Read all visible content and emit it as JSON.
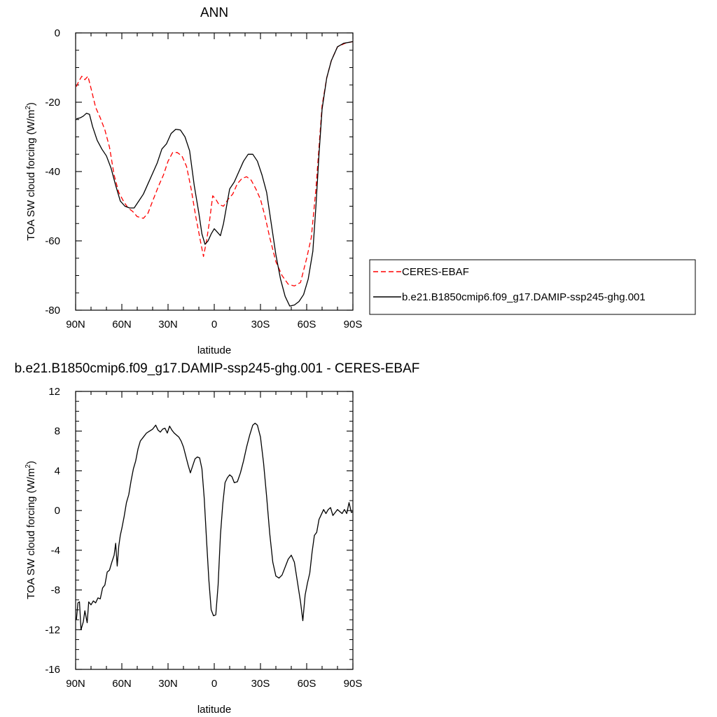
{
  "chart_data": [
    {
      "type": "line",
      "title": "ANN",
      "xlabel": "latitude",
      "ylabel": "TOA SW cloud forcing (W/m",
      "ylabel_sup": "2",
      "ylabel_close": ")",
      "xlim": [
        90,
        -90
      ],
      "ylim": [
        -80,
        0
      ],
      "x_ticks": [
        90,
        60,
        30,
        0,
        -30,
        -60,
        -90
      ],
      "x_tick_labels": [
        "90N",
        "60N",
        "30N",
        "0",
        "30S",
        "60S",
        "90S"
      ],
      "y_ticks": [
        0,
        -20,
        -40,
        -60,
        -80
      ],
      "y_tick_labels": [
        "0",
        "-20",
        "-40",
        "-60",
        "-80"
      ],
      "legend_position": "right",
      "series": [
        {
          "name": "CERES-EBAF",
          "color": "#ff0000",
          "dash": "dashed",
          "points": [
            [
              89.5,
              -15.5
            ],
            [
              88,
              -14
            ],
            [
              86,
              -12.5
            ],
            [
              84,
              -13.5
            ],
            [
              82,
              -12.5
            ],
            [
              80,
              -16
            ],
            [
              77,
              -21.5
            ],
            [
              74,
              -24.5
            ],
            [
              71,
              -28
            ],
            [
              68,
              -33
            ],
            [
              65,
              -41
            ],
            [
              62,
              -46
            ],
            [
              59,
              -48.5
            ],
            [
              56,
              -50.5
            ],
            [
              53,
              -51.5
            ],
            [
              50,
              -53
            ],
            [
              46,
              -53.5
            ],
            [
              43,
              -52
            ],
            [
              40,
              -48.5
            ],
            [
              36,
              -44
            ],
            [
              33,
              -41
            ],
            [
              30,
              -37
            ],
            [
              27,
              -34.5
            ],
            [
              24,
              -34.5
            ],
            [
              21,
              -35.5
            ],
            [
              18,
              -38.5
            ],
            [
              15,
              -45
            ],
            [
              12,
              -53
            ],
            [
              9,
              -60
            ],
            [
              7,
              -64.5
            ],
            [
              5,
              -60
            ],
            [
              3,
              -54
            ],
            [
              1,
              -47
            ],
            [
              -1,
              -48
            ],
            [
              -3,
              -49.5
            ],
            [
              -6,
              -50
            ],
            [
              -9,
              -48
            ],
            [
              -12,
              -46.5
            ],
            [
              -15,
              -43.5
            ],
            [
              -18,
              -42
            ],
            [
              -21,
              -41.5
            ],
            [
              -24,
              -42.5
            ],
            [
              -27,
              -45
            ],
            [
              -30,
              -48
            ],
            [
              -33,
              -53
            ],
            [
              -36,
              -59
            ],
            [
              -40,
              -66
            ],
            [
              -44,
              -70
            ],
            [
              -48,
              -72.5
            ],
            [
              -52,
              -73
            ],
            [
              -56,
              -72
            ],
            [
              -60,
              -65
            ],
            [
              -63,
              -59
            ],
            [
              -66,
              -45
            ],
            [
              -68,
              -33
            ],
            [
              -70,
              -21
            ],
            [
              -73,
              -13
            ],
            [
              -76,
              -8
            ],
            [
              -80,
              -4
            ],
            [
              -85,
              -3
            ],
            [
              -90,
              -2.5
            ]
          ]
        },
        {
          "name": "b.e21.B1850cmip6.f09_g17.DAMIP-ssp245-ghg.001",
          "color": "#000000",
          "dash": "solid",
          "points": [
            [
              89.5,
              -24.8
            ],
            [
              87,
              -24.5
            ],
            [
              85,
              -24
            ],
            [
              83,
              -23.2
            ],
            [
              81,
              -23.5
            ],
            [
              79,
              -27
            ],
            [
              76,
              -31
            ],
            [
              73,
              -33.5
            ],
            [
              70,
              -35.5
            ],
            [
              67,
              -39
            ],
            [
              64,
              -44
            ],
            [
              61,
              -48.5
            ],
            [
              58,
              -50
            ],
            [
              55,
              -50.5
            ],
            [
              52,
              -50.5
            ],
            [
              49,
              -48.5
            ],
            [
              46,
              -46.5
            ],
            [
              43,
              -43.5
            ],
            [
              40,
              -40.5
            ],
            [
              37,
              -37.5
            ],
            [
              34,
              -33.5
            ],
            [
              31,
              -32
            ],
            [
              28,
              -29
            ],
            [
              25,
              -27.8
            ],
            [
              22,
              -28
            ],
            [
              19,
              -30
            ],
            [
              16,
              -34
            ],
            [
              13,
              -44
            ],
            [
              10,
              -52
            ],
            [
              8,
              -58
            ],
            [
              6,
              -61
            ],
            [
              4,
              -60
            ],
            [
              2,
              -58
            ],
            [
              0,
              -56.5
            ],
            [
              -2,
              -57.5
            ],
            [
              -4,
              -58.5
            ],
            [
              -6,
              -55
            ],
            [
              -8,
              -50
            ],
            [
              -10,
              -45
            ],
            [
              -13,
              -43
            ],
            [
              -16,
              -40
            ],
            [
              -19,
              -37
            ],
            [
              -22,
              -35
            ],
            [
              -25,
              -35
            ],
            [
              -28,
              -37
            ],
            [
              -31,
              -41
            ],
            [
              -34,
              -46
            ],
            [
              -37,
              -55
            ],
            [
              -40,
              -64
            ],
            [
              -43,
              -71
            ],
            [
              -46,
              -76
            ],
            [
              -49,
              -78.8
            ],
            [
              -52,
              -78.5
            ],
            [
              -55,
              -77.5
            ],
            [
              -58,
              -75.5
            ],
            [
              -61,
              -71
            ],
            [
              -64,
              -63
            ],
            [
              -66,
              -50
            ],
            [
              -68,
              -35
            ],
            [
              -70,
              -22
            ],
            [
              -73,
              -13
            ],
            [
              -76,
              -8
            ],
            [
              -80,
              -4
            ],
            [
              -84,
              -3
            ],
            [
              -90,
              -2.5
            ]
          ]
        }
      ]
    },
    {
      "type": "line",
      "title": "b.e21.B1850cmip6.f09_g17.DAMIP-ssp245-ghg.001 - CERES-EBAF",
      "xlabel": "latitude",
      "ylabel": "TOA SW cloud forcing (W/m",
      "ylabel_sup": "2",
      "ylabel_close": ")",
      "xlim": [
        90,
        -90
      ],
      "ylim": [
        -16,
        12
      ],
      "x_ticks": [
        90,
        60,
        30,
        0,
        -30,
        -60,
        -90
      ],
      "x_tick_labels": [
        "90N",
        "60N",
        "30N",
        "0",
        "30S",
        "60S",
        "90S"
      ],
      "y_ticks": [
        12,
        8,
        4,
        0,
        -4,
        -8,
        -12,
        -16
      ],
      "y_tick_labels": [
        "12",
        "8",
        "4",
        "0",
        "-4",
        "-8",
        "-12",
        "-16"
      ],
      "series": [
        {
          "color": "#000000",
          "dash": "solid",
          "points": [
            [
              89.5,
              -11
            ],
            [
              88.5,
              -9.3
            ],
            [
              87.5,
              -9.2
            ],
            [
              86.5,
              -12
            ],
            [
              85,
              -11.2
            ],
            [
              84,
              -10.1
            ],
            [
              82.5,
              -11.3
            ],
            [
              81.5,
              -9.2
            ],
            [
              80,
              -9.5
            ],
            [
              78.5,
              -9.1
            ],
            [
              77,
              -9.3
            ],
            [
              75.5,
              -8.8
            ],
            [
              74,
              -8.9
            ],
            [
              72.5,
              -7.8
            ],
            [
              71,
              -7.5
            ],
            [
              69.5,
              -6.2
            ],
            [
              68,
              -6
            ],
            [
              66.5,
              -5.2
            ],
            [
              65,
              -4.5
            ],
            [
              64,
              -3.3
            ],
            [
              63,
              -5.6
            ],
            [
              62,
              -3.6
            ],
            [
              61,
              -2.5
            ],
            [
              60,
              -1.8
            ],
            [
              58.5,
              -0.6
            ],
            [
              57,
              0.8
            ],
            [
              55.5,
              1.6
            ],
            [
              54,
              3
            ],
            [
              52.5,
              4.2
            ],
            [
              51,
              5
            ],
            [
              49.5,
              6.2
            ],
            [
              48,
              7
            ],
            [
              46,
              7.4
            ],
            [
              44,
              7.8
            ],
            [
              42,
              8
            ],
            [
              40,
              8.2
            ],
            [
              38,
              8.6
            ],
            [
              36.5,
              8.1
            ],
            [
              35,
              7.9
            ],
            [
              33.5,
              8.2
            ],
            [
              32,
              8.3
            ],
            [
              30.5,
              7.8
            ],
            [
              29,
              8.5
            ],
            [
              27.5,
              8.1
            ],
            [
              26,
              7.8
            ],
            [
              24.5,
              7.6
            ],
            [
              23,
              7.4
            ],
            [
              21.5,
              7
            ],
            [
              20,
              6.4
            ],
            [
              18.5,
              5.5
            ],
            [
              17,
              4.6
            ],
            [
              15.5,
              3.8
            ],
            [
              14,
              4.5
            ],
            [
              12.5,
              5.2
            ],
            [
              11,
              5.4
            ],
            [
              9.5,
              5.3
            ],
            [
              8,
              4.2
            ],
            [
              6.5,
              1.2
            ],
            [
              5,
              -3
            ],
            [
              3.5,
              -7
            ],
            [
              2,
              -10
            ],
            [
              0.5,
              -10.6
            ],
            [
              -1,
              -10.5
            ],
            [
              -2.5,
              -7.5
            ],
            [
              -4,
              -2.5
            ],
            [
              -5.5,
              0.6
            ],
            [
              -7,
              2.8
            ],
            [
              -8.5,
              3.3
            ],
            [
              -10,
              3.6
            ],
            [
              -11.5,
              3.4
            ],
            [
              -13,
              2.8
            ],
            [
              -15,
              2.9
            ],
            [
              -17,
              3.8
            ],
            [
              -19,
              5
            ],
            [
              -21,
              6.4
            ],
            [
              -23,
              7.6
            ],
            [
              -25,
              8.6
            ],
            [
              -26.5,
              8.8
            ],
            [
              -28,
              8.6
            ],
            [
              -30,
              7.4
            ],
            [
              -32,
              4.8
            ],
            [
              -34,
              1.4
            ],
            [
              -36,
              -2.3
            ],
            [
              -38,
              -5.2
            ],
            [
              -40,
              -6.6
            ],
            [
              -42,
              -6.8
            ],
            [
              -44,
              -6.5
            ],
            [
              -46,
              -5.7
            ],
            [
              -48,
              -4.9
            ],
            [
              -50,
              -4.5
            ],
            [
              -52,
              -5.2
            ],
            [
              -54,
              -7.2
            ],
            [
              -56,
              -9.2
            ],
            [
              -57.5,
              -11.1
            ],
            [
              -59,
              -8.5
            ],
            [
              -60.5,
              -7.3
            ],
            [
              -62,
              -6.3
            ],
            [
              -63.5,
              -4.2
            ],
            [
              -65,
              -2.5
            ],
            [
              -66.5,
              -2.2
            ],
            [
              -68,
              -0.9
            ],
            [
              -69.5,
              -0.4
            ],
            [
              -71,
              0.1
            ],
            [
              -72.5,
              -0.3
            ],
            [
              -74,
              0.1
            ],
            [
              -75.5,
              0.3
            ],
            [
              -77,
              -0.5
            ],
            [
              -78.5,
              -0.2
            ],
            [
              -80,
              0.1
            ],
            [
              -81.5,
              -0.1
            ],
            [
              -83,
              -0.3
            ],
            [
              -84.5,
              0.1
            ],
            [
              -86,
              -0.3
            ],
            [
              -87.5,
              0.8
            ],
            [
              -89,
              -0.2
            ],
            [
              -90,
              -0.1
            ]
          ]
        }
      ]
    }
  ]
}
